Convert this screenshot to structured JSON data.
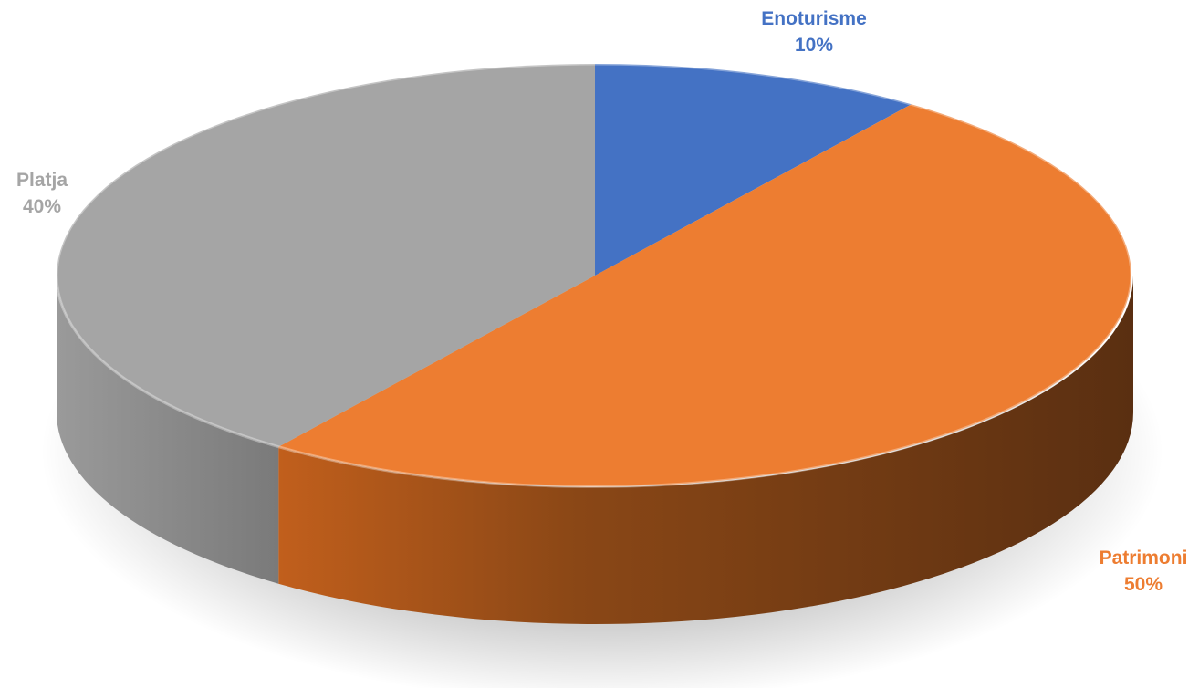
{
  "chart_data": {
    "type": "pie",
    "style": "3d",
    "categories": [
      "Enoturisme",
      "Patrimoni",
      "Platja"
    ],
    "values": [
      10,
      50,
      40
    ],
    "labels": [
      {
        "name": "Enoturisme",
        "percent": "10%"
      },
      {
        "name": "Patrimoni",
        "percent": "50%"
      },
      {
        "name": "Platja",
        "percent": "40%"
      }
    ],
    "colors": [
      "#4472C4",
      "#ED7D31",
      "#A5A5A5"
    ],
    "legend": "none",
    "title": ""
  }
}
